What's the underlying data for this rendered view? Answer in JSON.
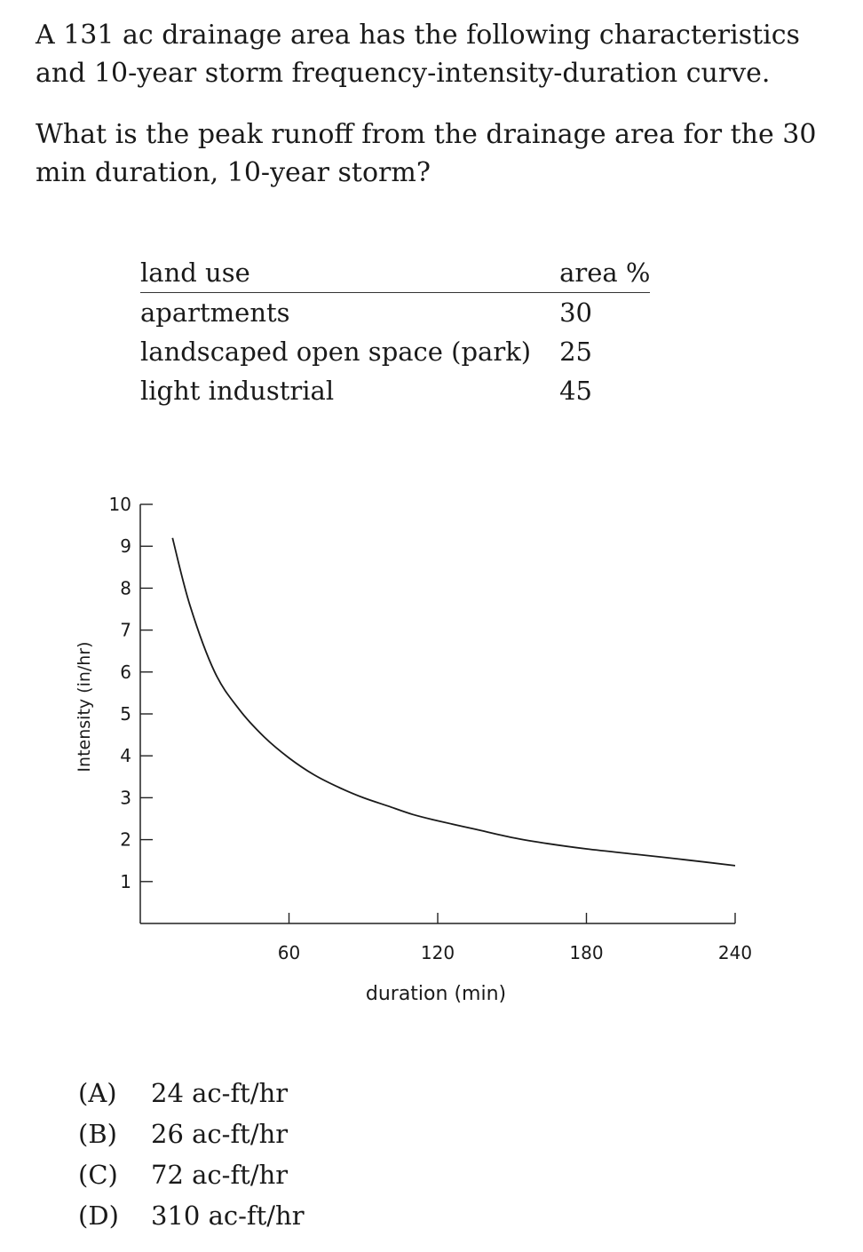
{
  "problem": {
    "intro": "A 131 ac drainage area has the following characteristics and 10-year storm frequency-intensity-duration curve.",
    "question": "What is the peak runoff from the drainage area for the 30 min duration, 10-year storm?"
  },
  "land_use_table": {
    "headers": {
      "land_use": "land use",
      "area_pct": "area %"
    },
    "rows": [
      {
        "land_use": "apartments",
        "area_pct": "30"
      },
      {
        "land_use": "landscaped open space (park)",
        "area_pct": "25"
      },
      {
        "land_use": "light industrial",
        "area_pct": "45"
      }
    ]
  },
  "chart_data": {
    "type": "line",
    "title": "",
    "xlabel": "duration (min)",
    "ylabel": "Intensity (in/hr)",
    "xlim": [
      0,
      240
    ],
    "ylim": [
      0,
      10
    ],
    "x_ticks": [
      60,
      120,
      180,
      240
    ],
    "y_ticks": [
      1,
      2,
      3,
      4,
      5,
      6,
      7,
      8,
      9,
      10
    ],
    "grid": false,
    "legend": "none",
    "series": [
      {
        "x": [
          13,
          20,
          30,
          40,
          50,
          60,
          70,
          80,
          90,
          100,
          110,
          120,
          135,
          150,
          165,
          180,
          200,
          220,
          240
        ],
        "y": [
          9.2,
          7.6,
          6.0,
          5.1,
          4.45,
          3.95,
          3.55,
          3.25,
          3.0,
          2.8,
          2.6,
          2.45,
          2.25,
          2.05,
          1.9,
          1.78,
          1.65,
          1.52,
          1.38
        ]
      }
    ]
  },
  "choices": [
    {
      "letter": "(A)",
      "text": "24 ac-ft/hr"
    },
    {
      "letter": "(B)",
      "text": "26 ac-ft/hr"
    },
    {
      "letter": "(C)",
      "text": "72 ac-ft/hr"
    },
    {
      "letter": "(D)",
      "text": "310 ac-ft/hr"
    }
  ]
}
